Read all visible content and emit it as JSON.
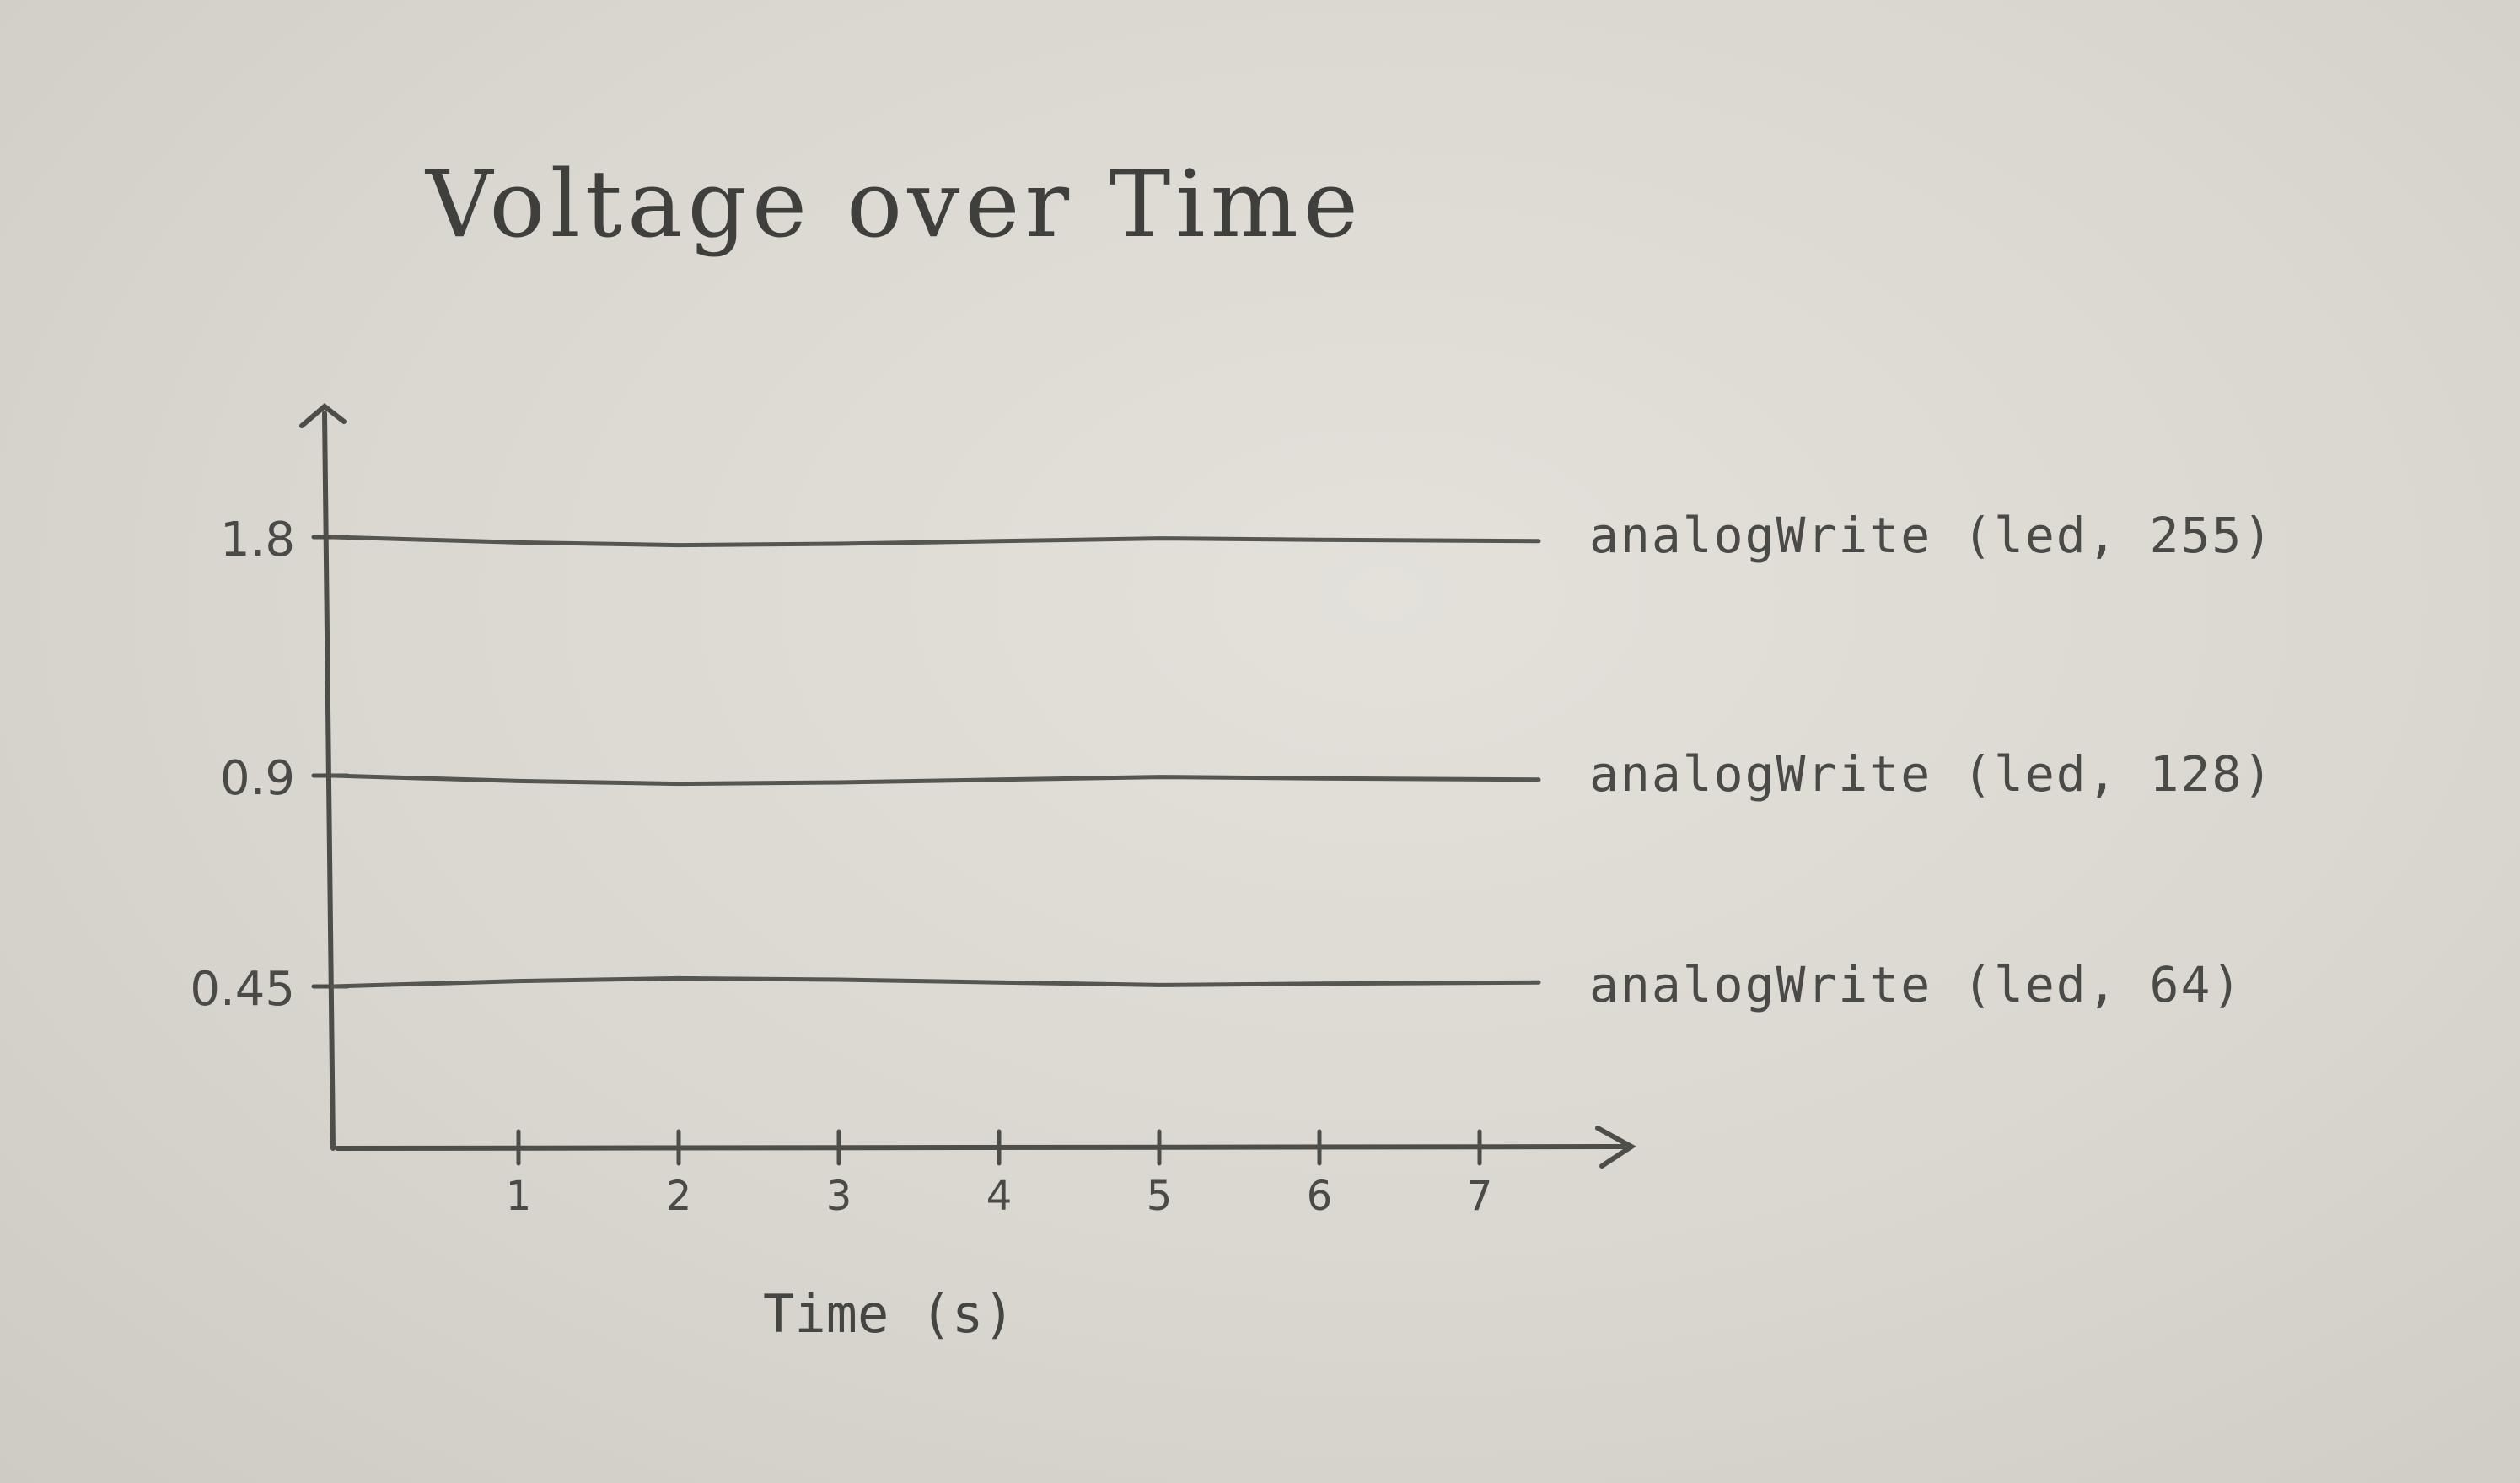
{
  "chart_data": {
    "type": "line",
    "title": "Voltage over Time",
    "xlabel": "Time (s)",
    "ylabel": "",
    "x": [
      0,
      1,
      2,
      3,
      4,
      5,
      6,
      7
    ],
    "x_ticks": [
      "1",
      "2",
      "3",
      "4",
      "5",
      "6",
      "7"
    ],
    "y_ticks": [
      "1.8",
      "0.9",
      "0.45"
    ],
    "series": [
      {
        "name": "analogWrite (led, 255)",
        "values": [
          1.8,
          1.8,
          1.8,
          1.8,
          1.8,
          1.8,
          1.8,
          1.8
        ]
      },
      {
        "name": "analogWrite (led, 128)",
        "values": [
          0.9,
          0.9,
          0.9,
          0.9,
          0.9,
          0.9,
          0.9,
          0.9
        ]
      },
      {
        "name": "analogWrite (led, 64)",
        "values": [
          0.45,
          0.45,
          0.45,
          0.45,
          0.45,
          0.45,
          0.45,
          0.45
        ]
      }
    ],
    "grid": false,
    "legend": "right-of-lines",
    "colors": {
      "pencil": "#4a4a48",
      "paper": "#dcdad2"
    }
  }
}
